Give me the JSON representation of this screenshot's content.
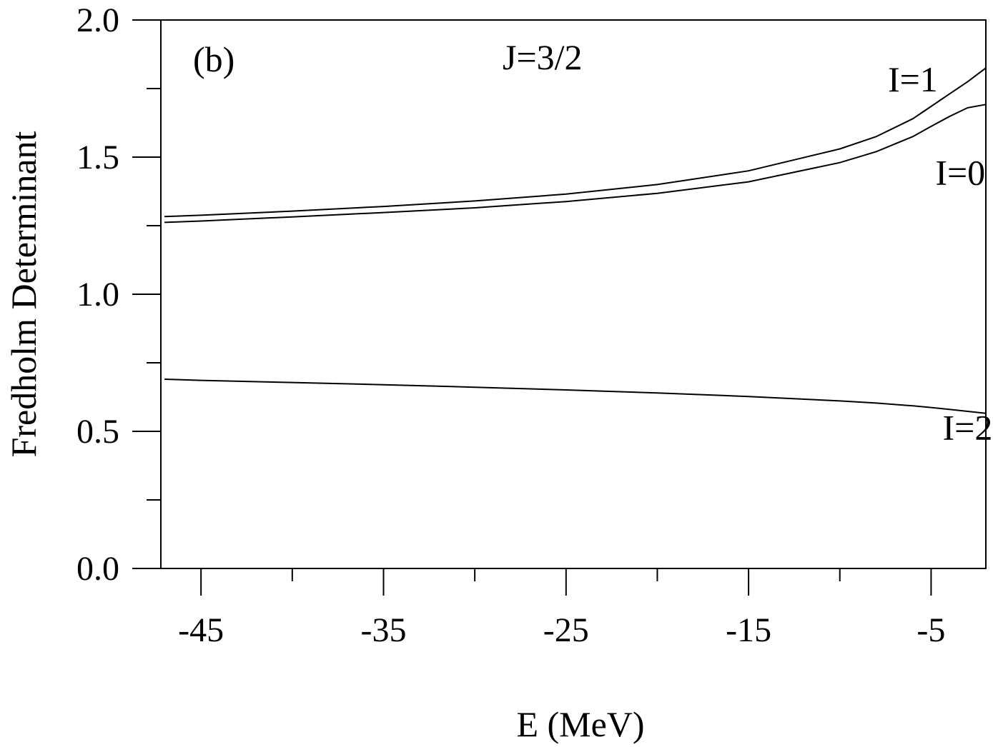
{
  "chart_data": {
    "type": "line",
    "panel_label": "(b)",
    "subtitle": "J=3/2",
    "xlabel": "E (MeV)",
    "ylabel": "Fredholm Determinant",
    "xlim": [
      -47.2,
      -2.0
    ],
    "ylim": [
      0.0,
      2.0
    ],
    "x_ticks": [
      -45,
      -35,
      -25,
      -15,
      -5
    ],
    "x_tick_labels": [
      "-45",
      "-35",
      "-25",
      "-15",
      "-5"
    ],
    "x_minor_ticks": [
      -40,
      -30,
      -20,
      -10
    ],
    "y_ticks": [
      0.0,
      0.5,
      1.0,
      1.5,
      2.0
    ],
    "y_tick_labels": [
      "0.0",
      "0.5",
      "1.0",
      "1.5",
      "2.0"
    ],
    "y_minor_ticks": [
      0.25,
      0.75,
      1.25,
      1.75
    ],
    "grid": false,
    "x": [
      -47,
      -45,
      -40,
      -35,
      -30,
      -25,
      -20,
      -15,
      -10,
      -8,
      -6,
      -5,
      -4,
      -3,
      -2
    ],
    "series": [
      {
        "name": "I=1",
        "values": [
          1.283,
          1.288,
          1.303,
          1.32,
          1.34,
          1.365,
          1.4,
          1.45,
          1.53,
          1.575,
          1.64,
          1.685,
          1.73,
          1.775,
          1.825
        ],
        "label_near_x": -6.0,
        "label_near_y": 1.74
      },
      {
        "name": "I=0",
        "values": [
          1.262,
          1.267,
          1.282,
          1.298,
          1.315,
          1.338,
          1.368,
          1.41,
          1.48,
          1.52,
          1.575,
          1.612,
          1.648,
          1.68,
          1.692
        ],
        "label_near_x": -3.4,
        "label_near_y": 1.4
      },
      {
        "name": "I=2",
        "values": [
          0.69,
          0.686,
          0.678,
          0.67,
          0.661,
          0.651,
          0.64,
          0.627,
          0.611,
          0.603,
          0.593,
          0.587,
          0.58,
          0.573,
          0.566
        ],
        "label_near_x": -3.0,
        "label_near_y": 0.47
      }
    ]
  }
}
